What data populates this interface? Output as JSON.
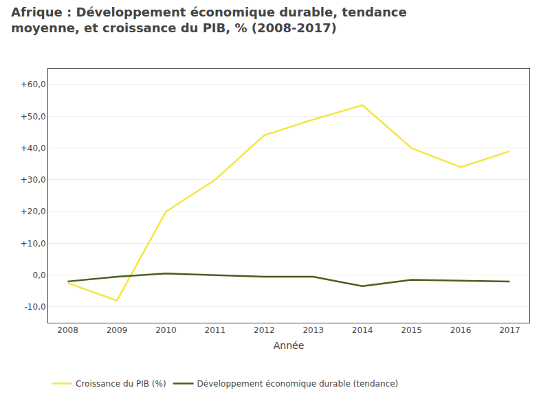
{
  "chart_data": {
    "type": "line",
    "title": "Afrique : Développement économique durable, tendance moyenne, et croissance du PIB, % (2008-2017)",
    "x_label": "Année",
    "x": [
      2008,
      2009,
      2010,
      2011,
      2012,
      2013,
      2014,
      2015,
      2016,
      2017
    ],
    "series": [
      {
        "name": "Croissance du PIB (%)",
        "color": "#f5e642",
        "values": [
          -2.5,
          -8.0,
          20.0,
          30.0,
          44.0,
          49.0,
          53.5,
          40.0,
          34.0,
          39.0
        ]
      },
      {
        "name": "Développement économique durable (tendance)",
        "color": "#4a5e1a",
        "values": [
          -2.0,
          -0.5,
          0.5,
          0.0,
          -0.5,
          -0.5,
          -3.5,
          -1.5,
          -1.8,
          -2.0
        ]
      }
    ],
    "xlim": [
      2007.6,
      2017.4
    ],
    "xticks": [
      2008,
      2009,
      2010,
      2011,
      2012,
      2013,
      2014,
      2015,
      2016,
      2017
    ],
    "ylim": [
      -15,
      65
    ],
    "yticks": [
      {
        "value": -10,
        "label": "-10,0"
      },
      {
        "value": 0,
        "label": "0,0"
      },
      {
        "value": 10,
        "label": "+10,0"
      },
      {
        "value": 20,
        "label": "+20,0"
      },
      {
        "value": 30,
        "label": "+30,0"
      },
      {
        "value": 40,
        "label": "+40,0"
      },
      {
        "value": 50,
        "label": "+50,0"
      },
      {
        "value": 60,
        "label": "+60,0"
      }
    ],
    "grid": true,
    "legend": "bottom"
  }
}
